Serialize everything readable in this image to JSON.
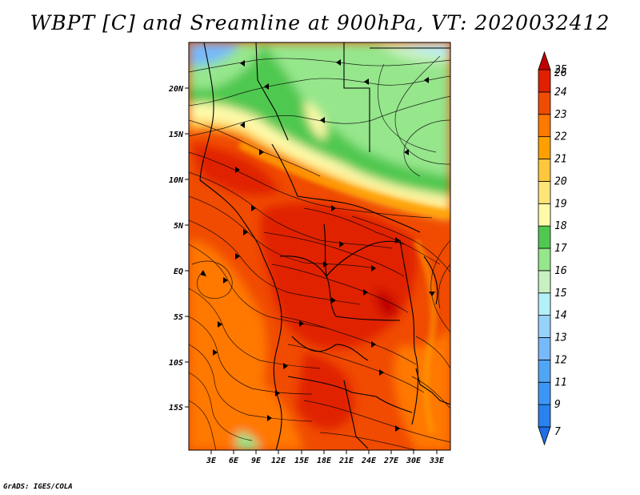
{
  "title": "WBPT [C] and Sreamline at 900hPa, VT: 2020032412",
  "credit": "GrADS: IGES/COLA",
  "map": {
    "region": "Central Africa",
    "lat_labels": [
      "20N",
      "15N",
      "10N",
      "5N",
      "EQ",
      "5S",
      "10S",
      "15S"
    ],
    "lon_labels": [
      "3E",
      "6E",
      "9E",
      "12E",
      "15E",
      "18E",
      "21E",
      "24E",
      "27E",
      "30E",
      "33E"
    ]
  },
  "colorbar": {
    "levels": [
      "7",
      "9",
      "11",
      "12",
      "13",
      "14",
      "15",
      "16",
      "17",
      "18",
      "19",
      "20",
      "21",
      "22",
      "23",
      "24",
      "25",
      "26"
    ],
    "colors": [
      "#1e6ee6",
      "#2882f0",
      "#3c96f5",
      "#50a5f5",
      "#78b9fa",
      "#96d2fa",
      "#b4f0fa",
      "#c8f0c0",
      "#96e68c",
      "#50c850",
      "#fffaaa",
      "#ffe478",
      "#ffc83c",
      "#ffa000",
      "#ff7800",
      "#f04b00",
      "#e02000",
      "#c00000"
    ]
  }
}
